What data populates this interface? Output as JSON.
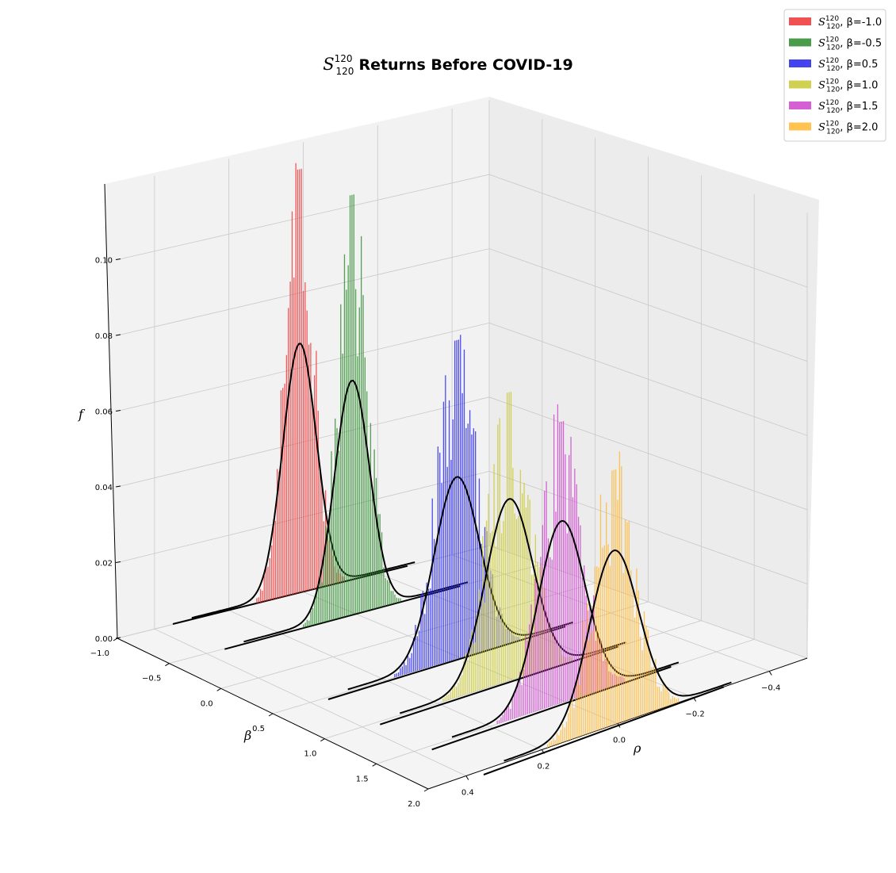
{
  "chart_data": {
    "type": "3d-histogram",
    "title": "S^{120}_{120} Returns Before COVID-19",
    "title_parts": {
      "symbol": "S",
      "superscript": "120",
      "subscript": "120",
      "rest": "Returns Before COVID-19"
    },
    "xlabel": "ρ",
    "ylabel": "β",
    "zlabel": "f",
    "xlim": [
      -0.5,
      0.5
    ],
    "ylim": [
      -1.0,
      2.0
    ],
    "zlim": [
      0,
      0.12
    ],
    "x_ticks": [
      "−0.4",
      "−0.2",
      "0.0",
      "0.2",
      "0.4"
    ],
    "y_ticks": [
      "−1.0",
      "−0.5",
      "0.0",
      "0.5",
      "1.0",
      "1.5",
      "2.0"
    ],
    "z_ticks": [
      "0.00",
      "0.02",
      "0.04",
      "0.06",
      "0.08",
      "0.10"
    ],
    "grid": true,
    "legend_position": "top-right",
    "series": [
      {
        "label": "S^{120}_{120}, β=-1.0",
        "legend_text": ", β=-1.0",
        "beta": -1.0,
        "color": "#ee3333",
        "peak_hist": 0.113,
        "peak_fit": 0.066,
        "fit_mean": 0.01,
        "fit_sd": 0.045,
        "hist_sd": 0.04
      },
      {
        "label": "S^{120}_{120}, β=-0.5",
        "legend_text": ", β=-0.5",
        "beta": -0.5,
        "color": "#2a8a2a",
        "peak_hist": 0.112,
        "peak_fit": 0.062,
        "fit_mean": 0.01,
        "fit_sd": 0.047,
        "hist_sd": 0.042
      },
      {
        "label": "S^{120}_{120}, β=0.5",
        "legend_text": ", β=0.5",
        "beta": 0.5,
        "color": "#2222ee",
        "peak_hist": 0.085,
        "peak_fit": 0.048,
        "fit_mean": 0.01,
        "fit_sd": 0.06,
        "hist_sd": 0.055
      },
      {
        "label": "S^{120}_{120}, β=1.0",
        "legend_text": ", β=1.0",
        "beta": 1.0,
        "color": "#c8c832",
        "peak_hist": 0.077,
        "peak_fit": 0.048,
        "fit_mean": 0.01,
        "fit_sd": 0.062,
        "hist_sd": 0.058
      },
      {
        "label": "S^{120}_{120}, β=1.5",
        "legend_text": ", β=1.5",
        "beta": 1.5,
        "color": "#cc44cc",
        "peak_hist": 0.075,
        "peak_fit": 0.048,
        "fit_mean": 0.01,
        "fit_sd": 0.062,
        "hist_sd": 0.058
      },
      {
        "label": "S^{120}_{120}, β=2.0",
        "legend_text": ", β=2.0",
        "beta": 2.0,
        "color": "#ffb833",
        "peak_hist": 0.068,
        "peak_fit": 0.046,
        "fit_mean": 0.01,
        "fit_sd": 0.065,
        "hist_sd": 0.06
      }
    ],
    "fit_line_color": "#000000",
    "legend_symbol": {
      "base": "S",
      "sup": "120",
      "sub": "120"
    }
  }
}
